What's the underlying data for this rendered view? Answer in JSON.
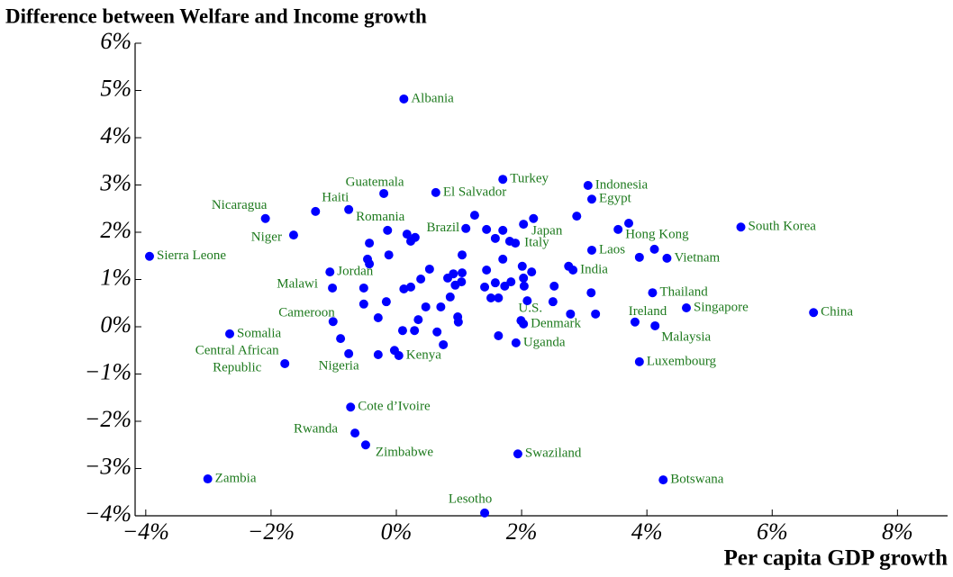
{
  "chart_data": {
    "type": "scatter",
    "title": "Difference between Welfare and Income growth",
    "x_label": "Per capita GDP growth",
    "color": "#0000ff",
    "label_color": "#1e7a1e",
    "xlim": [
      -4.17,
      8.8
    ],
    "ylim": [
      -4,
      6
    ],
    "xticks": [
      {
        "value": -4,
        "label": "−4%"
      },
      {
        "value": -2,
        "label": "−2%"
      },
      {
        "value": 0,
        "label": "0%"
      },
      {
        "value": 2,
        "label": "2%"
      },
      {
        "value": 4,
        "label": "4%"
      },
      {
        "value": 6,
        "label": "6%"
      },
      {
        "value": 8,
        "label": "8%"
      }
    ],
    "yticks": [
      {
        "value": -4,
        "label": "−4%"
      },
      {
        "value": -3,
        "label": "−3%"
      },
      {
        "value": -2,
        "label": "−2%"
      },
      {
        "value": -1,
        "label": "−1%"
      },
      {
        "value": 0,
        "label": "0%"
      },
      {
        "value": 1,
        "label": "1%"
      },
      {
        "value": 2,
        "label": "2%"
      },
      {
        "value": 3,
        "label": "3%"
      },
      {
        "value": 4,
        "label": "4%"
      },
      {
        "value": 5,
        "label": "5%"
      },
      {
        "value": 6,
        "label": "6%"
      }
    ],
    "point_labels": [
      "Albania",
      "Turkey",
      "Indonesia",
      "Guatemala",
      "El Salvador",
      "Egypt",
      "Nicaragua",
      "Haiti",
      "Romania",
      "South Korea",
      "Brazil",
      "Niger",
      "Japan",
      "Hong Kong",
      "Italy",
      "Laos",
      "Sierra Leone",
      "Vietnam",
      "India",
      "Jordan",
      "Malawi",
      "Thailand",
      "U.S.",
      "Singapore",
      "China",
      "Ireland",
      "Cameroon",
      "Denmark",
      "Malaysia",
      "Somalia",
      "Uganda",
      "Kenya",
      "Nigeria",
      [
        "Central African",
        "Republic"
      ],
      "Luxembourg",
      "Cote d’Ivoire",
      "Rwanda",
      "Zimbabwe",
      "Swaziland",
      "Zambia",
      "Botswana",
      "Lesotho",
      null,
      null,
      null,
      null,
      null,
      null,
      null,
      null,
      null,
      null,
      null,
      null,
      null,
      null,
      null,
      null,
      null,
      null,
      null,
      null,
      null,
      null,
      null,
      null,
      null,
      null,
      null,
      null,
      null,
      null,
      null,
      null,
      null,
      null,
      null,
      null,
      null,
      null,
      null,
      null,
      null,
      null,
      null,
      null,
      null,
      null,
      null,
      null,
      null,
      null,
      null,
      null,
      null,
      null,
      null,
      null,
      null,
      null,
      null,
      null,
      null,
      null,
      null
    ],
    "x": [
      0.12,
      1.7,
      3.06,
      -0.2,
      0.63,
      3.12,
      -2.09,
      -1.29,
      -0.76,
      5.5,
      1.11,
      -1.64,
      2.03,
      3.54,
      1.9,
      3.12,
      -3.94,
      4.32,
      2.82,
      -1.06,
      -1.02,
      4.09,
      1.99,
      4.63,
      6.66,
      3.81,
      -1.01,
      2.03,
      4.13,
      -2.66,
      1.91,
      0.04,
      -0.76,
      -1.78,
      3.88,
      -0.73,
      -0.66,
      -0.49,
      1.94,
      -3.01,
      4.26,
      1.41,
      -0.43,
      -0.46,
      -0.43,
      -0.12,
      -0.14,
      0.17,
      0.23,
      0.3,
      0.12,
      0.23,
      0.39,
      0.53,
      0.47,
      0.71,
      0.82,
      0.91,
      1.05,
      1.05,
      1.04,
      0.94,
      0.86,
      0.65,
      0.75,
      0.29,
      0.35,
      0.1,
      -0.03,
      -0.29,
      -0.29,
      -0.16,
      -0.52,
      -0.52,
      -0.89,
      0.98,
      0.99,
      1.25,
      1.44,
      1.58,
      1.81,
      1.7,
      1.44,
      1.41,
      1.51,
      1.63,
      1.58,
      1.73,
      1.83,
      1.7,
      2.01,
      2.03,
      2.04,
      2.16,
      2.09,
      1.63,
      2.52,
      2.5,
      2.75,
      2.78,
      3.18,
      3.11,
      2.88,
      3.71,
      3.88,
      4.12,
      2.19
    ],
    "values": [
      4.82,
      3.12,
      2.99,
      2.82,
      2.84,
      2.7,
      2.29,
      2.44,
      2.48,
      2.11,
      2.08,
      1.94,
      2.17,
      2.06,
      1.77,
      1.62,
      1.49,
      1.45,
      1.2,
      1.16,
      0.82,
      0.72,
      0.13,
      0.4,
      0.3,
      0.1,
      0.11,
      0.06,
      0.02,
      -0.15,
      -0.34,
      -0.61,
      -0.57,
      -0.78,
      -0.74,
      -1.7,
      -2.25,
      -2.5,
      -2.69,
      -3.22,
      -3.24,
      -3.94,
      1.77,
      1.43,
      1.33,
      1.52,
      2.04,
      1.96,
      1.81,
      1.89,
      0.8,
      0.84,
      1.01,
      1.22,
      0.42,
      0.42,
      1.03,
      1.12,
      1.52,
      1.14,
      0.95,
      0.88,
      0.63,
      -0.11,
      -0.38,
      -0.08,
      0.15,
      -0.08,
      -0.5,
      -0.59,
      0.19,
      0.53,
      0.82,
      0.48,
      -0.25,
      0.21,
      0.1,
      2.36,
      2.06,
      1.87,
      1.81,
      2.04,
      1.2,
      0.84,
      0.61,
      0.61,
      0.93,
      0.86,
      0.95,
      1.43,
      1.28,
      1.03,
      0.86,
      1.16,
      0.55,
      -0.19,
      0.86,
      0.53,
      1.28,
      0.27,
      0.27,
      0.72,
      2.34,
      2.19,
      1.47,
      1.64,
      2.29
    ]
  }
}
